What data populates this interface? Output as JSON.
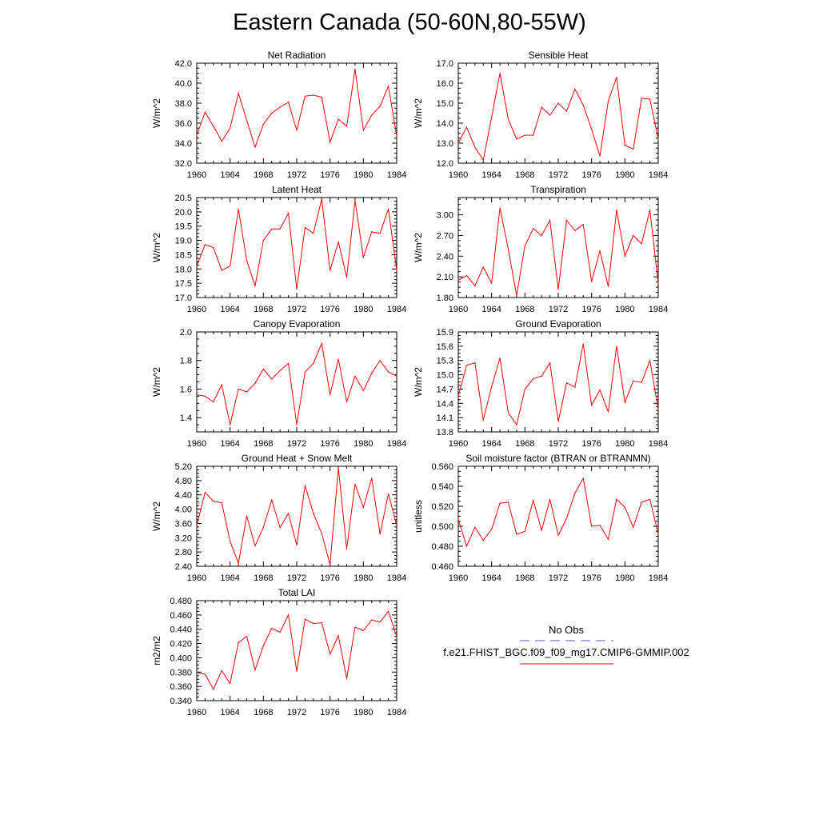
{
  "title": "Eastern Canada (50-60N,80-55W)",
  "colors": {
    "model_line": "#ff0000",
    "obs_line": "#5555aa",
    "frame": "#000000"
  },
  "legend": {
    "obs_label": "No Obs",
    "model_label": "f.e21.FHIST_BGC.f09_f09_mg17.CMIP6-GMMIP.002"
  },
  "chart_data": [
    {
      "type": "line",
      "title": "Net Radiation",
      "ylabel": "W/m^2",
      "xlim": [
        1960,
        1984
      ],
      "ylim": [
        32.0,
        42.0
      ],
      "x_ticks": [
        "1960",
        "1964",
        "1968",
        "1972",
        "1976",
        "1980",
        "1984"
      ],
      "y_ticks": [
        "32.0",
        "34.0",
        "36.0",
        "38.0",
        "40.0",
        "42.0"
      ],
      "x": [
        1960,
        1961,
        1962,
        1963,
        1964,
        1965,
        1966,
        1967,
        1968,
        1969,
        1970,
        1971,
        1972,
        1973,
        1974,
        1975,
        1976,
        1977,
        1978,
        1979,
        1980,
        1981,
        1982,
        1983,
        1984
      ],
      "values": [
        34.8,
        37.1,
        35.7,
        34.2,
        35.5,
        39.0,
        36.3,
        33.6,
        35.9,
        37.0,
        37.6,
        38.1,
        35.3,
        38.7,
        38.8,
        38.6,
        34.1,
        36.4,
        35.7,
        41.4,
        35.3,
        36.8,
        37.7,
        39.7,
        34.7
      ],
      "grid": false
    },
    {
      "type": "line",
      "title": "Sensible Heat",
      "ylabel": "W/m^2",
      "xlim": [
        1960,
        1984
      ],
      "ylim": [
        12.0,
        17.0
      ],
      "x_ticks": [
        "1960",
        "1964",
        "1968",
        "1972",
        "1976",
        "1980",
        "1984"
      ],
      "y_ticks": [
        "12.0",
        "13.0",
        "14.0",
        "15.0",
        "16.0",
        "17.0"
      ],
      "x": [
        1960,
        1961,
        1962,
        1963,
        1964,
        1965,
        1966,
        1967,
        1968,
        1969,
        1970,
        1971,
        1972,
        1973,
        1974,
        1975,
        1976,
        1977,
        1978,
        1979,
        1980,
        1981,
        1982,
        1983,
        1984
      ],
      "values": [
        13.0,
        13.8,
        12.8,
        12.15,
        14.3,
        16.5,
        14.2,
        13.2,
        13.4,
        13.4,
        14.8,
        14.4,
        15.0,
        14.6,
        15.7,
        14.9,
        13.7,
        12.35,
        15.1,
        16.3,
        12.9,
        12.7,
        15.25,
        15.2,
        13.2
      ],
      "grid": false
    },
    {
      "type": "line",
      "title": "Latent Heat",
      "ylabel": "W/m^2",
      "xlim": [
        1960,
        1984
      ],
      "ylim": [
        17.0,
        20.5
      ],
      "x_ticks": [
        "1960",
        "1964",
        "1968",
        "1972",
        "1976",
        "1980",
        "1984"
      ],
      "y_ticks": [
        "17.0",
        "17.5",
        "18.0",
        "18.5",
        "19.0",
        "19.5",
        "20.0",
        "20.5"
      ],
      "x": [
        1960,
        1961,
        1962,
        1963,
        1964,
        1965,
        1966,
        1967,
        1968,
        1969,
        1970,
        1971,
        1972,
        1973,
        1974,
        1975,
        1976,
        1977,
        1978,
        1979,
        1980,
        1981,
        1982,
        1983,
        1984
      ],
      "values": [
        18.1,
        18.85,
        18.75,
        17.95,
        18.1,
        20.1,
        18.3,
        17.4,
        19.0,
        19.4,
        19.4,
        19.95,
        17.3,
        19.45,
        19.25,
        20.45,
        17.95,
        18.95,
        17.7,
        20.4,
        18.4,
        19.3,
        19.25,
        20.1,
        17.95
      ],
      "grid": false
    },
    {
      "type": "line",
      "title": "Transpiration",
      "ylabel": "W/m^2",
      "xlim": [
        1960,
        1984
      ],
      "ylim": [
        1.8,
        3.25
      ],
      "x_ticks": [
        "1960",
        "1964",
        "1968",
        "1972",
        "1976",
        "1980",
        "1984"
      ],
      "y_ticks": [
        "1.80",
        "2.10",
        "2.40",
        "2.70",
        "3.00"
      ],
      "x": [
        1960,
        1961,
        1962,
        1963,
        1964,
        1965,
        1966,
        1967,
        1968,
        1969,
        1970,
        1971,
        1972,
        1973,
        1974,
        1975,
        1976,
        1977,
        1978,
        1979,
        1980,
        1981,
        1982,
        1983,
        1984
      ],
      "values": [
        2.05,
        2.12,
        1.97,
        2.24,
        2.01,
        3.1,
        2.5,
        1.83,
        2.55,
        2.8,
        2.7,
        2.92,
        1.92,
        2.92,
        2.77,
        2.86,
        2.03,
        2.48,
        1.96,
        3.07,
        2.4,
        2.7,
        2.58,
        3.07,
        2.0
      ],
      "grid": false
    },
    {
      "type": "line",
      "title": "Canopy Evaporation",
      "ylabel": "W/m^2",
      "xlim": [
        1960,
        1984
      ],
      "ylim": [
        1.3,
        2.0
      ],
      "x_ticks": [
        "1960",
        "1964",
        "1968",
        "1972",
        "1976",
        "1980",
        "1984"
      ],
      "y_ticks": [
        "1.4",
        "1.6",
        "1.8",
        "2.0"
      ],
      "x": [
        1960,
        1961,
        1962,
        1963,
        1964,
        1965,
        1966,
        1967,
        1968,
        1969,
        1970,
        1971,
        1972,
        1973,
        1974,
        1975,
        1976,
        1977,
        1978,
        1979,
        1980,
        1981,
        1982,
        1983,
        1984
      ],
      "values": [
        1.56,
        1.55,
        1.51,
        1.63,
        1.35,
        1.6,
        1.58,
        1.64,
        1.74,
        1.67,
        1.73,
        1.78,
        1.35,
        1.72,
        1.78,
        1.92,
        1.56,
        1.81,
        1.51,
        1.69,
        1.59,
        1.71,
        1.8,
        1.72,
        1.69
      ],
      "grid": false
    },
    {
      "type": "line",
      "title": "Ground Evaporation",
      "ylabel": "W/m^2",
      "xlim": [
        1960,
        1984
      ],
      "ylim": [
        13.8,
        15.9
      ],
      "x_ticks": [
        "1960",
        "1964",
        "1968",
        "1972",
        "1976",
        "1980",
        "1984"
      ],
      "y_ticks": [
        "13.8",
        "14.1",
        "14.4",
        "14.7",
        "15.0",
        "15.3",
        "15.6",
        "15.9"
      ],
      "x": [
        1960,
        1961,
        1962,
        1963,
        1964,
        1965,
        1966,
        1967,
        1968,
        1969,
        1970,
        1971,
        1972,
        1973,
        1974,
        1975,
        1976,
        1977,
        1978,
        1979,
        1980,
        1981,
        1982,
        1983,
        1984
      ],
      "values": [
        14.55,
        15.2,
        15.25,
        14.05,
        14.75,
        15.35,
        14.2,
        13.95,
        14.7,
        14.92,
        14.97,
        15.25,
        14.02,
        14.83,
        14.74,
        15.65,
        14.36,
        14.68,
        14.22,
        15.6,
        14.42,
        14.87,
        14.84,
        15.3,
        14.27
      ],
      "grid": false
    },
    {
      "type": "line",
      "title": "Ground Heat + Snow Melt",
      "ylabel": "W/m^2",
      "xlim": [
        1960,
        1984
      ],
      "ylim": [
        2.4,
        5.2
      ],
      "x_ticks": [
        "1960",
        "1964",
        "1968",
        "1972",
        "1976",
        "1980",
        "1984"
      ],
      "y_ticks": [
        "2.40",
        "2.80",
        "3.20",
        "3.60",
        "4.00",
        "4.40",
        "4.80",
        "5.20"
      ],
      "x": [
        1960,
        1961,
        1962,
        1963,
        1964,
        1965,
        1966,
        1967,
        1968,
        1969,
        1970,
        1971,
        1972,
        1973,
        1974,
        1975,
        1976,
        1977,
        1978,
        1979,
        1980,
        1981,
        1982,
        1983,
        1984
      ],
      "values": [
        3.55,
        4.47,
        4.22,
        4.18,
        3.1,
        2.48,
        3.81,
        2.97,
        3.49,
        4.26,
        3.48,
        3.88,
        2.99,
        4.66,
        3.88,
        3.32,
        2.45,
        5.15,
        2.88,
        4.7,
        4.05,
        4.87,
        3.3,
        4.43,
        3.55
      ],
      "grid": false
    },
    {
      "type": "line",
      "title": "Soil moisture factor (BTRAN or BTRANMN)",
      "ylabel": "unitless",
      "xlim": [
        1960,
        1984
      ],
      "ylim": [
        0.46,
        0.56
      ],
      "x_ticks": [
        "1960",
        "1964",
        "1968",
        "1972",
        "1976",
        "1980",
        "1984"
      ],
      "y_ticks": [
        "0.460",
        "0.480",
        "0.500",
        "0.520",
        "0.540",
        "0.560"
      ],
      "x": [
        1960,
        1961,
        1962,
        1963,
        1964,
        1965,
        1966,
        1967,
        1968,
        1969,
        1970,
        1971,
        1972,
        1973,
        1974,
        1975,
        1976,
        1977,
        1978,
        1979,
        1980,
        1981,
        1982,
        1983,
        1984
      ],
      "values": [
        0.507,
        0.48,
        0.499,
        0.486,
        0.497,
        0.523,
        0.524,
        0.492,
        0.495,
        0.526,
        0.496,
        0.527,
        0.491,
        0.508,
        0.533,
        0.548,
        0.5,
        0.501,
        0.487,
        0.527,
        0.519,
        0.499,
        0.524,
        0.527,
        0.492
      ],
      "grid": false
    },
    {
      "type": "line",
      "title": "Total LAI",
      "ylabel": "m2/m2",
      "xlim": [
        1960,
        1984
      ],
      "ylim": [
        0.34,
        0.48
      ],
      "x_ticks": [
        "1960",
        "1964",
        "1968",
        "1972",
        "1976",
        "1980",
        "1984"
      ],
      "y_ticks": [
        "0.340",
        "0.360",
        "0.380",
        "0.400",
        "0.420",
        "0.440",
        "0.460",
        "0.480"
      ],
      "x": [
        1960,
        1961,
        1962,
        1963,
        1964,
        1965,
        1966,
        1967,
        1968,
        1969,
        1970,
        1971,
        1972,
        1973,
        1974,
        1975,
        1976,
        1977,
        1978,
        1979,
        1980,
        1981,
        1982,
        1983,
        1984
      ],
      "values": [
        0.379,
        0.377,
        0.356,
        0.382,
        0.364,
        0.421,
        0.43,
        0.383,
        0.417,
        0.441,
        0.436,
        0.46,
        0.381,
        0.454,
        0.448,
        0.449,
        0.405,
        0.431,
        0.371,
        0.443,
        0.438,
        0.453,
        0.45,
        0.465,
        0.43
      ],
      "grid": false
    }
  ]
}
